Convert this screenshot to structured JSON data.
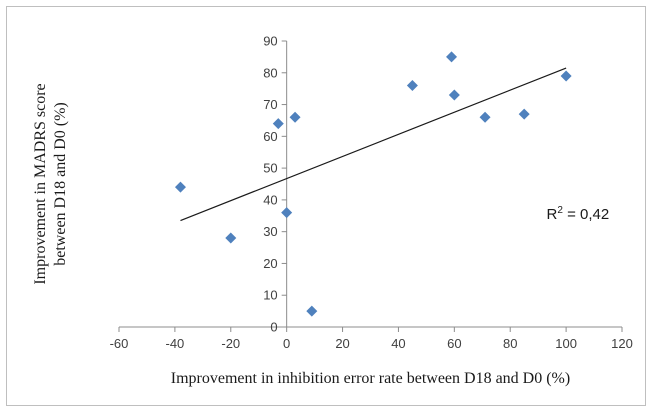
{
  "chart_data": {
    "type": "scatter",
    "title": "",
    "xlabel": "Improvement in inhibition error rate between D18 and D0 (%)",
    "ylabel_line1": "Improvement in MADRS score",
    "ylabel_line2": "between D18 and D0 (%)",
    "xlim": [
      -60,
      120
    ],
    "ylim": [
      0,
      90
    ],
    "xticks": [
      -60,
      -40,
      -20,
      0,
      20,
      40,
      60,
      80,
      100,
      120
    ],
    "yticks": [
      0,
      10,
      20,
      30,
      40,
      50,
      60,
      70,
      80,
      90
    ],
    "grid": false,
    "legend": "none",
    "marker_color": "#4f81bd",
    "points": [
      {
        "x": -38,
        "y": 44
      },
      {
        "x": -20,
        "y": 28
      },
      {
        "x": -3,
        "y": 64
      },
      {
        "x": 0,
        "y": 36
      },
      {
        "x": 3,
        "y": 66
      },
      {
        "x": 9,
        "y": 5
      },
      {
        "x": 45,
        "y": 76
      },
      {
        "x": 59,
        "y": 85
      },
      {
        "x": 60,
        "y": 73
      },
      {
        "x": 71,
        "y": 66
      },
      {
        "x": 85,
        "y": 67
      },
      {
        "x": 100,
        "y": 79
      }
    ],
    "trendline": {
      "x": [
        -38,
        100
      ],
      "y": [
        33.5,
        81.5
      ]
    },
    "annotation": {
      "label": "R",
      "superscript": "2",
      "value": " = 0,42",
      "x": 93,
      "y": 34
    }
  }
}
